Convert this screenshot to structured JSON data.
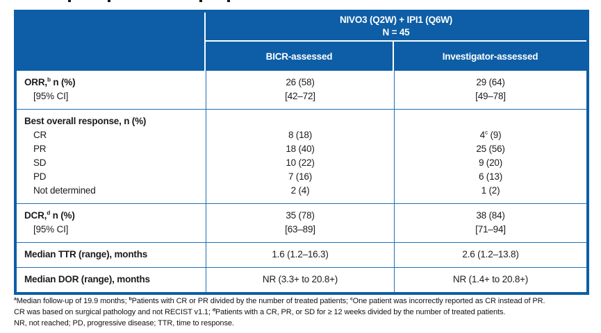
{
  "colors": {
    "header_blue": "#0d5ea6",
    "grid_blue": "#1e6fb4",
    "header_text": "#ffffff",
    "body_text": "#1b1b1b"
  },
  "header": {
    "treatment": "NIVO3 (Q2W) + IPI1 (Q6W)",
    "n": "N = 45",
    "columns": [
      "BICR-assessed",
      "Investigator-assessed"
    ]
  },
  "rows": [
    {
      "left": [
        {
          "bold": true,
          "segs": [
            "ORR,",
            {
              "sup": "b"
            },
            " n (%)"
          ]
        },
        {
          "indent": true,
          "segs": [
            "[95% CI]"
          ]
        }
      ],
      "bicr": [
        [
          "26 (58)"
        ],
        [
          "[42–72]"
        ]
      ],
      "investigator": [
        [
          "29 (64)"
        ],
        [
          "[49–78]"
        ]
      ]
    },
    {
      "left": [
        {
          "bold": true,
          "segs": [
            "Best overall response, n (%)"
          ]
        },
        {
          "indent": true,
          "segs": [
            "CR"
          ]
        },
        {
          "indent": true,
          "segs": [
            "PR"
          ]
        },
        {
          "indent": true,
          "segs": [
            "SD"
          ]
        },
        {
          "indent": true,
          "segs": [
            "PD"
          ]
        },
        {
          "indent": true,
          "segs": [
            "Not determined"
          ]
        }
      ],
      "bicr": [
        [
          ""
        ],
        [
          "8 (18)"
        ],
        [
          "18 (40)"
        ],
        [
          "10 (22)"
        ],
        [
          "7 (16)"
        ],
        [
          "2 (4)"
        ]
      ],
      "investigator": [
        [
          ""
        ],
        [
          "4",
          {
            "sup": "c"
          },
          " (9)"
        ],
        [
          "25 (56)"
        ],
        [
          "9 (20)"
        ],
        [
          "6 (13)"
        ],
        [
          "1 (2)"
        ]
      ]
    },
    {
      "left": [
        {
          "bold": true,
          "segs": [
            "DCR,",
            {
              "sup": "d"
            },
            " n (%)"
          ]
        },
        {
          "indent": true,
          "segs": [
            "[95% CI]"
          ]
        }
      ],
      "bicr": [
        [
          "35 (78)"
        ],
        [
          "[63–89]"
        ]
      ],
      "investigator": [
        [
          "38 (84)"
        ],
        [
          "[71–94]"
        ]
      ]
    },
    {
      "left": [
        {
          "bold": true,
          "segs": [
            "Median TTR (range), months"
          ]
        }
      ],
      "bicr": [
        [
          "1.6 (1.2–16.3)"
        ]
      ],
      "investigator": [
        [
          "2.6 (1.2–13.8)"
        ]
      ]
    },
    {
      "left": [
        {
          "bold": true,
          "segs": [
            "Median DOR (range), months"
          ]
        }
      ],
      "bicr": [
        [
          "NR (3.3+ to 20.8+)"
        ]
      ],
      "investigator": [
        [
          "NR (1.4+ to 20.8+)"
        ]
      ]
    }
  ],
  "footnotes": [
    [
      {
        "sup": "a"
      },
      "Median follow-up of 19.9 months; ",
      {
        "sup": "b"
      },
      "Patients with CR or PR divided by the number of treated patients; ",
      {
        "sup": "c"
      },
      "One patient was incorrectly reported as CR instead of PR."
    ],
    [
      "CR was based on surgical pathology and not RECIST v1.1; ",
      {
        "sup": "d"
      },
      "Patients with a CR, PR, or SD for ≥ 12 weeks divided by the number of treated patients."
    ],
    [
      "NR, not reached; PD, progressive disease; TTR, time to response."
    ]
  ]
}
